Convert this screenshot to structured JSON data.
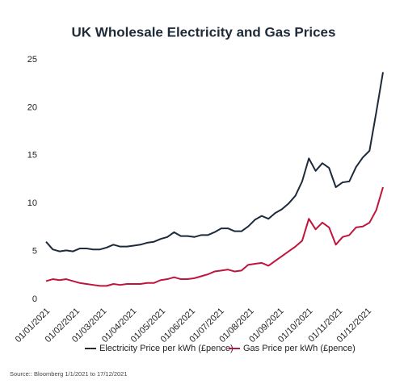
{
  "chart_data": {
    "type": "line",
    "title": "UK Wholesale Electricity and Gas Prices",
    "source": "Source:: Bloomberg 1/1/2021 to 17/12/2021",
    "x": [
      "2021-01-01",
      "2021-01-08",
      "2021-01-15",
      "2021-01-22",
      "2021-01-29",
      "2021-02-05",
      "2021-02-12",
      "2021-02-19",
      "2021-02-26",
      "2021-03-05",
      "2021-03-12",
      "2021-03-19",
      "2021-03-26",
      "2021-04-02",
      "2021-04-09",
      "2021-04-16",
      "2021-04-23",
      "2021-04-30",
      "2021-05-07",
      "2021-05-14",
      "2021-05-21",
      "2021-05-28",
      "2021-06-04",
      "2021-06-11",
      "2021-06-18",
      "2021-06-25",
      "2021-07-02",
      "2021-07-09",
      "2021-07-16",
      "2021-07-23",
      "2021-07-30",
      "2021-08-06",
      "2021-08-13",
      "2021-08-20",
      "2021-08-27",
      "2021-09-03",
      "2021-09-10",
      "2021-09-17",
      "2021-09-24",
      "2021-10-01",
      "2021-10-08",
      "2021-10-15",
      "2021-10-22",
      "2021-10-29",
      "2021-11-05",
      "2021-11-12",
      "2021-11-19",
      "2021-11-26",
      "2021-12-03",
      "2021-12-10",
      "2021-12-17"
    ],
    "xlim": [
      "2021-01-01",
      "2021-12-17"
    ],
    "xticks": [
      {
        "value": "2021-01-01",
        "label": "01/01/2021"
      },
      {
        "value": "2021-02-01",
        "label": "01/02/2021"
      },
      {
        "value": "2021-03-01",
        "label": "01/03/2021"
      },
      {
        "value": "2021-04-01",
        "label": "01/04/2021"
      },
      {
        "value": "2021-05-01",
        "label": "01/05/2021"
      },
      {
        "value": "2021-06-01",
        "label": "01/06/2021"
      },
      {
        "value": "2021-07-01",
        "label": "01/07/2021"
      },
      {
        "value": "2021-08-01",
        "label": "01/08/2021"
      },
      {
        "value": "2021-09-01",
        "label": "01/09/2021"
      },
      {
        "value": "2021-10-01",
        "label": "01/10/2021"
      },
      {
        "value": "2021-11-01",
        "label": "01/11/2021"
      },
      {
        "value": "2021-12-01",
        "label": "01/12/2021"
      }
    ],
    "ylim": [
      0,
      25
    ],
    "yticks": [
      0,
      5,
      10,
      15,
      20,
      25
    ],
    "grid": false,
    "legend": "bottom",
    "series": [
      {
        "name": "Electricity Price per kWh (£pence)",
        "color": "#1c2a3a",
        "values": [
          6.0,
          5.2,
          5.0,
          5.1,
          5.0,
          5.3,
          5.3,
          5.2,
          5.2,
          5.4,
          5.7,
          5.5,
          5.5,
          5.6,
          5.7,
          5.9,
          6.0,
          6.3,
          6.5,
          7.0,
          6.6,
          6.6,
          6.5,
          6.7,
          6.7,
          7.0,
          7.4,
          7.4,
          7.1,
          7.1,
          7.6,
          8.3,
          8.7,
          8.4,
          9.0,
          9.4,
          10.0,
          10.8,
          12.3,
          14.7,
          13.4,
          14.2,
          13.7,
          11.7,
          12.2,
          12.3,
          13.8,
          14.8,
          15.5,
          19.5,
          23.7
        ]
      },
      {
        "name": "Gas Price per kWh (£pence)",
        "color": "#c0143c",
        "values": [
          1.9,
          2.1,
          2.0,
          2.1,
          1.9,
          1.7,
          1.6,
          1.5,
          1.4,
          1.4,
          1.6,
          1.5,
          1.6,
          1.6,
          1.6,
          1.7,
          1.7,
          2.0,
          2.1,
          2.3,
          2.1,
          2.1,
          2.2,
          2.4,
          2.6,
          2.9,
          3.0,
          3.1,
          2.9,
          3.0,
          3.6,
          3.7,
          3.8,
          3.5,
          4.0,
          4.5,
          5.0,
          5.5,
          6.1,
          8.4,
          7.3,
          8.0,
          7.5,
          5.7,
          6.5,
          6.7,
          7.5,
          7.6,
          8.0,
          9.3,
          11.7
        ]
      }
    ]
  }
}
